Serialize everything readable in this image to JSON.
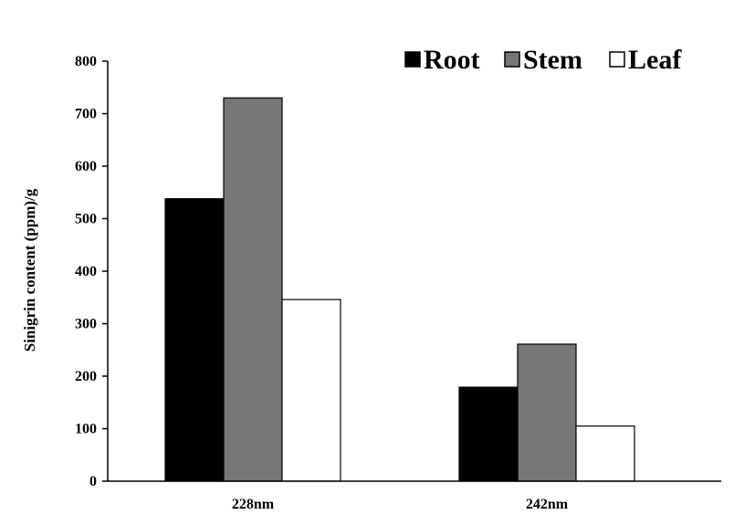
{
  "chart_data": {
    "type": "bar",
    "categories": [
      "228nm",
      "242nm"
    ],
    "series": [
      {
        "name": "Root",
        "values": [
          538,
          179
        ],
        "color": "#000000"
      },
      {
        "name": "Stem",
        "values": [
          730,
          261
        ],
        "color": "#777777"
      },
      {
        "name": "Leaf",
        "values": [
          346,
          105
        ],
        "color": "#ffffff"
      }
    ],
    "title": "",
    "xlabel": "",
    "ylabel": "Sinigrin  content (ppm)/g",
    "ylim": [
      0,
      800
    ],
    "yticks": [
      0,
      100,
      200,
      300,
      400,
      500,
      600,
      700,
      800
    ],
    "grid": false,
    "legend": "top-right"
  }
}
